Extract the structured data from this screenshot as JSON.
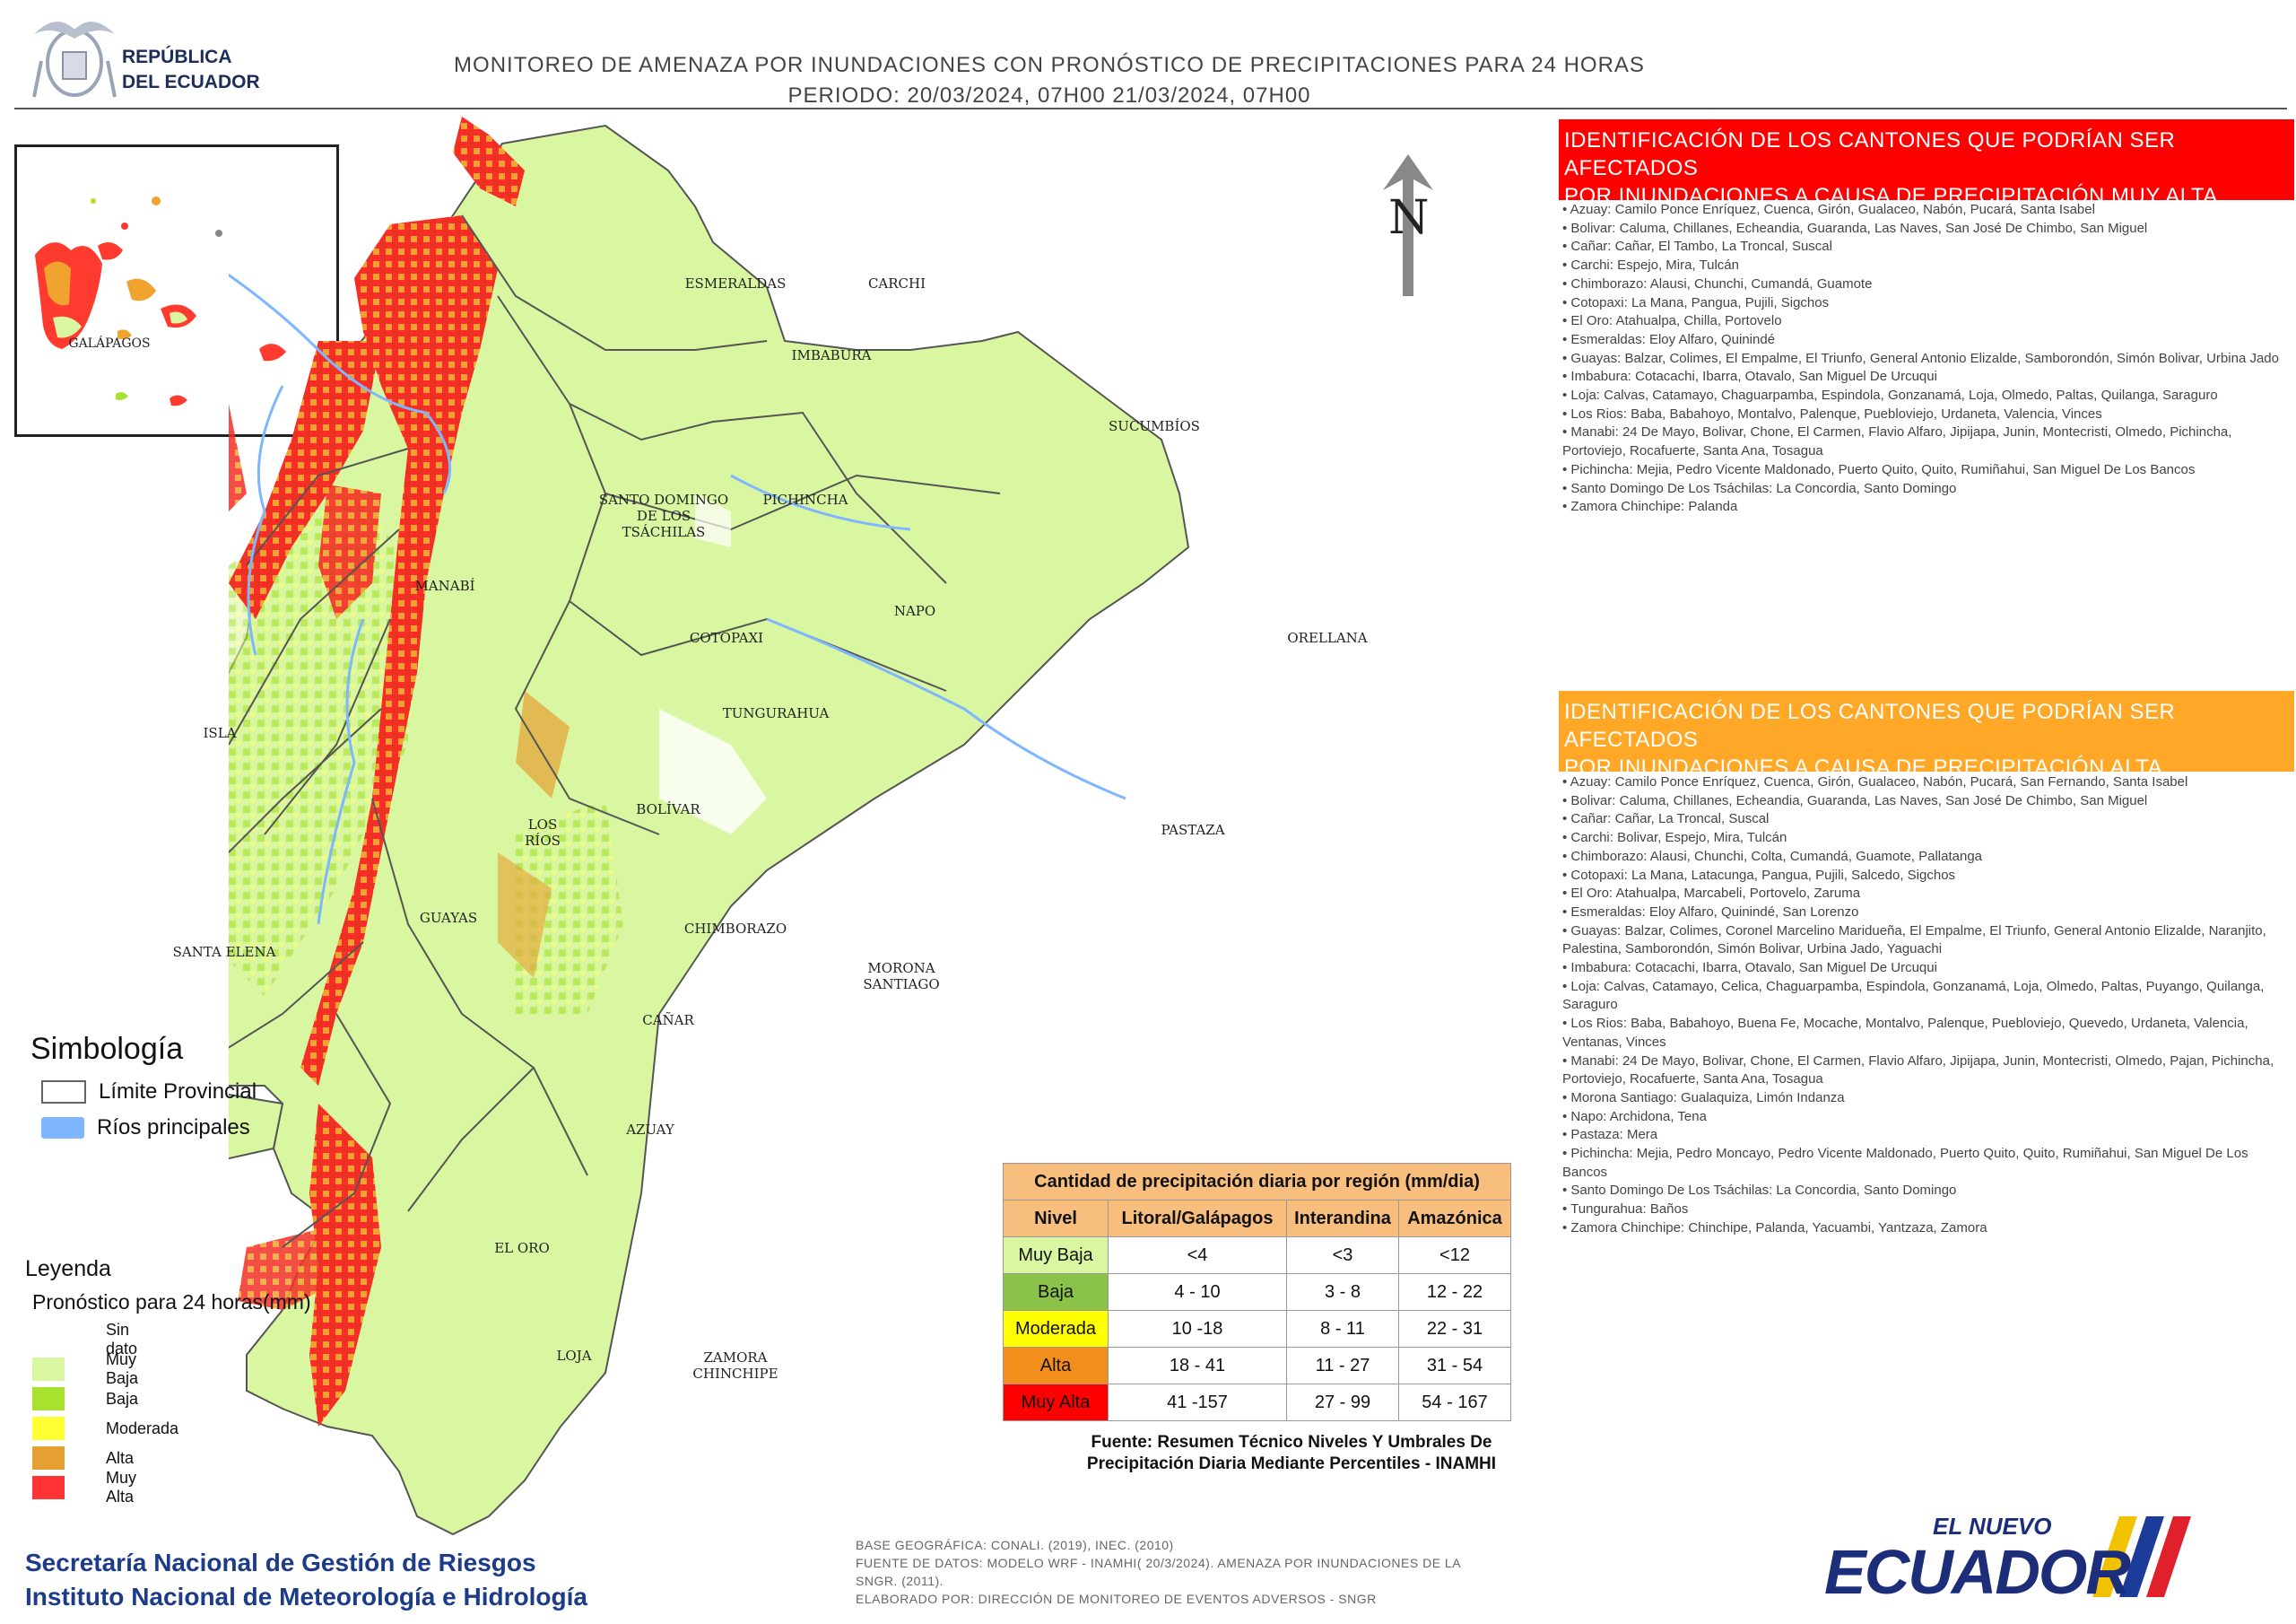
{
  "header": {
    "logo_line1": "REPÚBLICA",
    "logo_line2": "DEL ECUADOR",
    "title_line1": "MONITOREO DE AMENAZA POR INUNDACIONES  CON PRONÓSTICO DE  PRECIPITACIONES PARA 24 HORAS",
    "title_line2": "PERIODO: 20/03/2024, 07H00 21/03/2024, 07H00"
  },
  "inset": {
    "label": "GALÁPAGOS"
  },
  "north_label": "N",
  "map_labels": {
    "esmeraldas": "ESMERALDAS",
    "carchi": "CARCHI",
    "imbabura": "IMBABURA",
    "sucumbios": "SUCUMBÍOS",
    "santo_domingo_1": "SANTO DOMINGO",
    "santo_domingo_2": "DE LOS",
    "santo_domingo_3": "TSÁCHILAS",
    "pichincha": "PICHINCHA",
    "manabi": "MANABÍ",
    "napo": "NAPO",
    "orellana": "ORELLANA",
    "cotopaxi": "COTOPAXI",
    "tungurahua": "TUNGURAHUA",
    "isla": "ISLA",
    "bolivar": "BOLÍVAR",
    "los_rios_1": "LOS",
    "los_rios_2": "RÍOS",
    "pastaza": "PASTAZA",
    "guayas": "GUAYAS",
    "chimborazo": "CHIMBORAZO",
    "santa_elena": "SANTA ELENA",
    "morona_1": "MORONA",
    "morona_2": "SANTIAGO",
    "canar": "CAÑAR",
    "azuay": "AZUAY",
    "el_oro": "EL ORO",
    "loja": "LOJA",
    "zamora_1": "ZAMORA",
    "zamora_2": "CHINCHIPE"
  },
  "panel_muy_alta": {
    "title_line1": "IDENTIFICACIÓN DE LOS CANTONES QUE PODRÍAN SER AFECTADOS",
    "title_line2": "POR INUNDACIONES  A CAUSA DE PRECIPITACIÓN MUY ALTA",
    "color": "#ff0000",
    "items": [
      "Azuay: Camilo Ponce Enríquez, Cuenca, Girón, Gualaceo, Nabón, Pucará, Santa Isabel",
      "Bolivar: Caluma, Chillanes, Echeandia, Guaranda, Las Naves, San José De Chimbo, San Miguel",
      "Cañar: Cañar, El Tambo, La Troncal, Suscal",
      "Carchi: Espejo, Mira, Tulcán",
      "Chimborazo: Alausi, Chunchi, Cumandá, Guamote",
      "Cotopaxi: La Mana, Pangua, Pujili, Sigchos",
      "El Oro: Atahualpa, Chilla, Portovelo",
      "Esmeraldas: Eloy Alfaro, Quinindé",
      "Guayas: Balzar, Colimes, El Empalme, El Triunfo, General Antonio Elizalde, Samborondón, Simón Bolivar, Urbina Jado",
      "Imbabura: Cotacachi, Ibarra, Otavalo, San Miguel De Urcuqui",
      "Loja: Calvas, Catamayo, Chaguarpamba, Espindola, Gonzanamá, Loja, Olmedo, Paltas, Quilanga, Saraguro",
      "Los Rios: Baba, Babahoyo, Montalvo, Palenque, Puebloviejo, Urdaneta, Valencia, Vinces",
      "Manabi: 24 De Mayo, Bolivar, Chone, El Carmen, Flavio Alfaro, Jipijapa, Junin, Montecristi, Olmedo, Pichincha, Portoviejo, Rocafuerte, Santa Ana, Tosagua",
      "Pichincha: Mejia, Pedro Vicente Maldonado, Puerto Quito, Quito, Rumiñahui, San Miguel De Los Bancos",
      "Santo Domingo De Los Tsáchilas: La Concordia, Santo Domingo",
      "Zamora Chinchipe: Palanda"
    ]
  },
  "panel_alta": {
    "title_line1": "IDENTIFICACIÓN DE LOS CANTONES QUE  PODRÍAN SER AFECTADOS",
    "title_line2": "POR INUNDACIONES  A CAUSA DE PRECIPITACIÓN  ALTA",
    "color": "#ffa726",
    "items": [
      "Azuay: Camilo Ponce Enríquez, Cuenca, Girón, Gualaceo, Nabón, Pucará, San Fernando, Santa Isabel",
      "Bolivar: Caluma, Chillanes, Echeandia, Guaranda, Las Naves, San José De Chimbo, San Miguel",
      "Cañar: Cañar, La Troncal, Suscal",
      "Carchi: Bolivar, Espejo, Mira, Tulcán",
      "Chimborazo: Alausi, Chunchi, Colta, Cumandá, Guamote, Pallatanga",
      "Cotopaxi: La Mana, Latacunga, Pangua, Pujili, Salcedo, Sigchos",
      "El Oro: Atahualpa, Marcabeli, Portovelo, Zaruma",
      "Esmeraldas: Eloy Alfaro, Quinindé, San Lorenzo",
      "Guayas: Balzar, Colimes, Coronel Marcelino Maridueña, El Empalme, El Triunfo, General Antonio Elizalde, Naranjito, Palestina, Samborondón, Simón Bolivar, Urbina Jado, Yaguachi",
      "Imbabura: Cotacachi, Ibarra, Otavalo, San Miguel De Urcuqui",
      "Loja: Calvas, Catamayo, Celica, Chaguarpamba, Espindola, Gonzanamá, Loja, Olmedo, Paltas, Puyango, Quilanga, Saraguro",
      "Los Rios: Baba, Babahoyo, Buena Fe, Mocache, Montalvo, Palenque, Puebloviejo, Quevedo, Urdaneta, Valencia, Ventanas, Vinces",
      "Manabi: 24 De Mayo, Bolivar, Chone, El Carmen, Flavio Alfaro, Jipijapa, Junin, Montecristi, Olmedo, Pajan, Pichincha, Portoviejo, Rocafuerte, Santa Ana, Tosagua",
      "Morona Santiago: Gualaquiza, Limón Indanza",
      "Napo: Archidona, Tena",
      "Pastaza: Mera",
      "Pichincha: Mejia, Pedro Moncayo, Pedro Vicente Maldonado, Puerto Quito, Quito, Rumiñahui, San Miguel De Los Bancos",
      "Santo Domingo De Los Tsáchilas: La Concordia, Santo Domingo",
      "Tungurahua: Baños",
      "Zamora Chinchipe: Chinchipe, Palanda, Yacuambi, Yantzaza, Zamora"
    ]
  },
  "simbologia": {
    "title": "Simbología",
    "limite": "Límite Provincial",
    "rios": "Ríos principales",
    "rios_color": "#7eb6ff"
  },
  "leyenda": {
    "title": "Leyenda",
    "subtitle": "Pronóstico para 24 horas(mm)",
    "items": [
      {
        "label": "Sin dato",
        "color": "#ffffff"
      },
      {
        "label": "Muy Baja",
        "color": "#d9f7a1"
      },
      {
        "label": "Baja",
        "color": "#a6e22e"
      },
      {
        "label": "Moderada",
        "color": "#ffff33"
      },
      {
        "label": "Alta",
        "color": "#e6a032"
      },
      {
        "label": "Muy Alta",
        "color": "#ff3333"
      }
    ]
  },
  "precip_table": {
    "title": "Cantidad de precipitación diaria por región (mm/dia)",
    "headers": [
      "Nivel",
      "Litoral/Galápagos",
      "Interandina",
      "Amazónica"
    ],
    "rows": [
      {
        "nivel": "Muy Baja",
        "color": "#d9f7a1",
        "litoral": "<4",
        "interandina": "<3",
        "amazonica": "<12"
      },
      {
        "nivel": "Baja",
        "color": "#8bc34a",
        "litoral": "4 - 10",
        "interandina": "3 - 8",
        "amazonica": "12 - 22"
      },
      {
        "nivel": "Moderada",
        "color": "#ffff00",
        "litoral": "10 -18",
        "interandina": "8 - 11",
        "amazonica": "22 - 31"
      },
      {
        "nivel": "Alta",
        "color": "#f28e1c",
        "litoral": "18 - 41",
        "interandina": "11 - 27",
        "amazonica": "31 - 54"
      },
      {
        "nivel": "Muy Alta",
        "color": "#ff0000",
        "litoral": "41 -157",
        "interandina": "27 - 99",
        "amazonica": "54 - 167"
      }
    ],
    "fuente_line1": "Fuente: Resumen Técnico Niveles Y Umbrales De",
    "fuente_line2": "Precipitación Diaria Mediante Percentiles - INAMHI"
  },
  "credits": {
    "line1": "BASE GEOGRÁFICA: CONALI. (2019), INEC. (2010)",
    "line2": "FUENTE DE DATOS: MODELO WRF - INAMHI( 20/3/2024).  AMENAZA POR INUNDACIONES DE LA",
    "line3": "SNGR. (2011).",
    "line4": "ELABORADO POR: DIRECCIÓN DE MONITOREO DE EVENTOS ADVERSOS - SNGR"
  },
  "organizations": {
    "line1": "Secretaría Nacional de Gestión de Riesgos",
    "line2": "Instituto Nacional de Meteorología e Hidrología"
  },
  "brand": {
    "small": "EL NUEVO",
    "big": "ECUADOR"
  }
}
